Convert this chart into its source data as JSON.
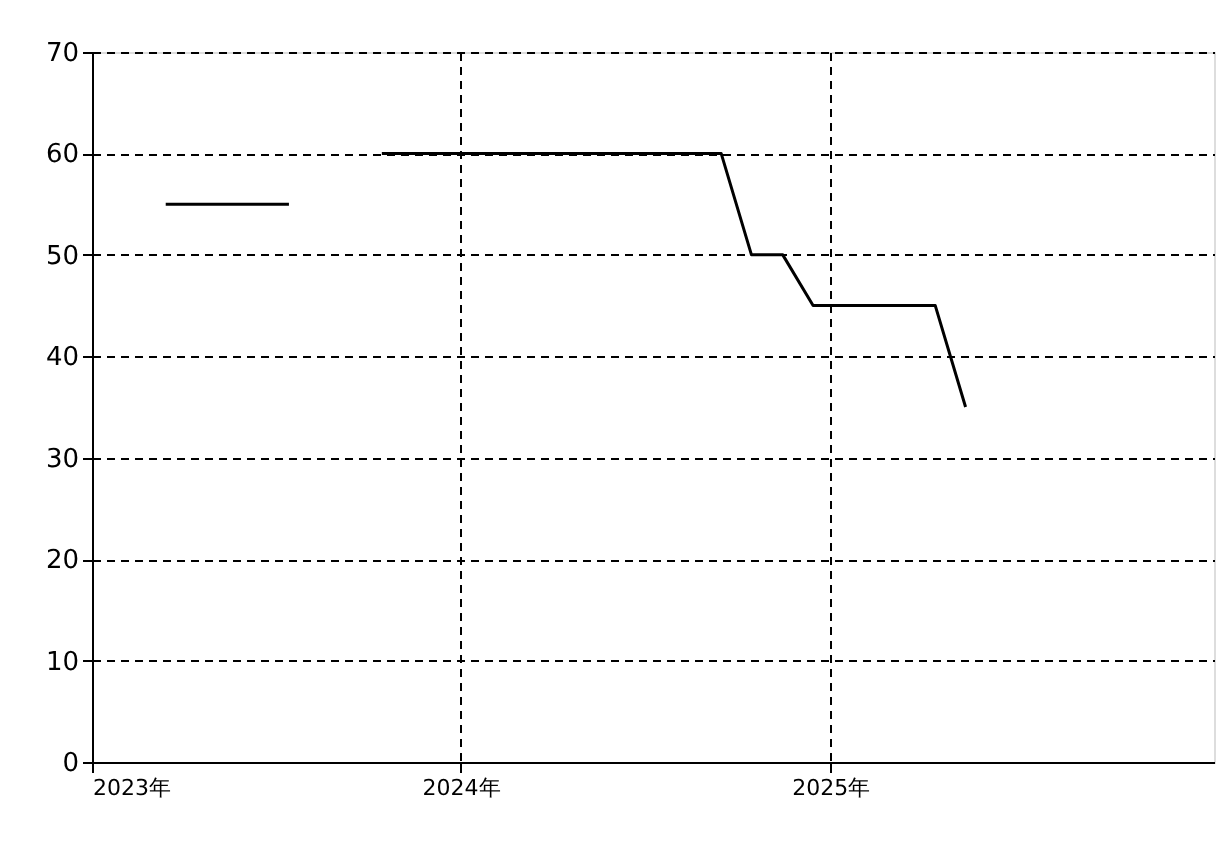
{
  "chart_data": {
    "type": "line",
    "x": [
      "2023-03-15",
      "2023-04-15",
      "2023-05-15",
      "2023-06-15",
      "2023-07-15",
      "2023-08-15",
      "2023-09-15",
      "2023-10-15",
      "2023-11-15",
      "2023-12-15",
      "2024-01-15",
      "2024-02-15",
      "2024-03-15",
      "2024-04-15",
      "2024-05-15",
      "2024-06-15",
      "2024-07-15",
      "2024-08-15",
      "2024-09-15",
      "2024-10-15",
      "2024-11-15",
      "2024-12-15",
      "2025-01-15",
      "2025-02-15",
      "2025-03-15",
      "2025-04-15",
      "2025-05-15"
    ],
    "series": [
      {
        "color": "#000000",
        "values": [
          55,
          55,
          55,
          55,
          55,
          null,
          null,
          60,
          60,
          60,
          60,
          60,
          60,
          60,
          60,
          60,
          60,
          60,
          60,
          50,
          50,
          45,
          45,
          45,
          45,
          45,
          35
        ]
      }
    ],
    "xlim": [
      "2023-01-01",
      "2026-01-16"
    ],
    "xticks": [
      {
        "value": "2023-01-01",
        "label": "2023年"
      },
      {
        "value": "2024-01-01",
        "label": "2024年"
      },
      {
        "value": "2025-01-01",
        "label": "2025年"
      }
    ],
    "ylim": [
      0,
      70
    ],
    "yticks": [
      0,
      10,
      20,
      30,
      40,
      50,
      60,
      70
    ],
    "grid": true,
    "line_style": "solid",
    "marker": "none",
    "legend": false
  }
}
